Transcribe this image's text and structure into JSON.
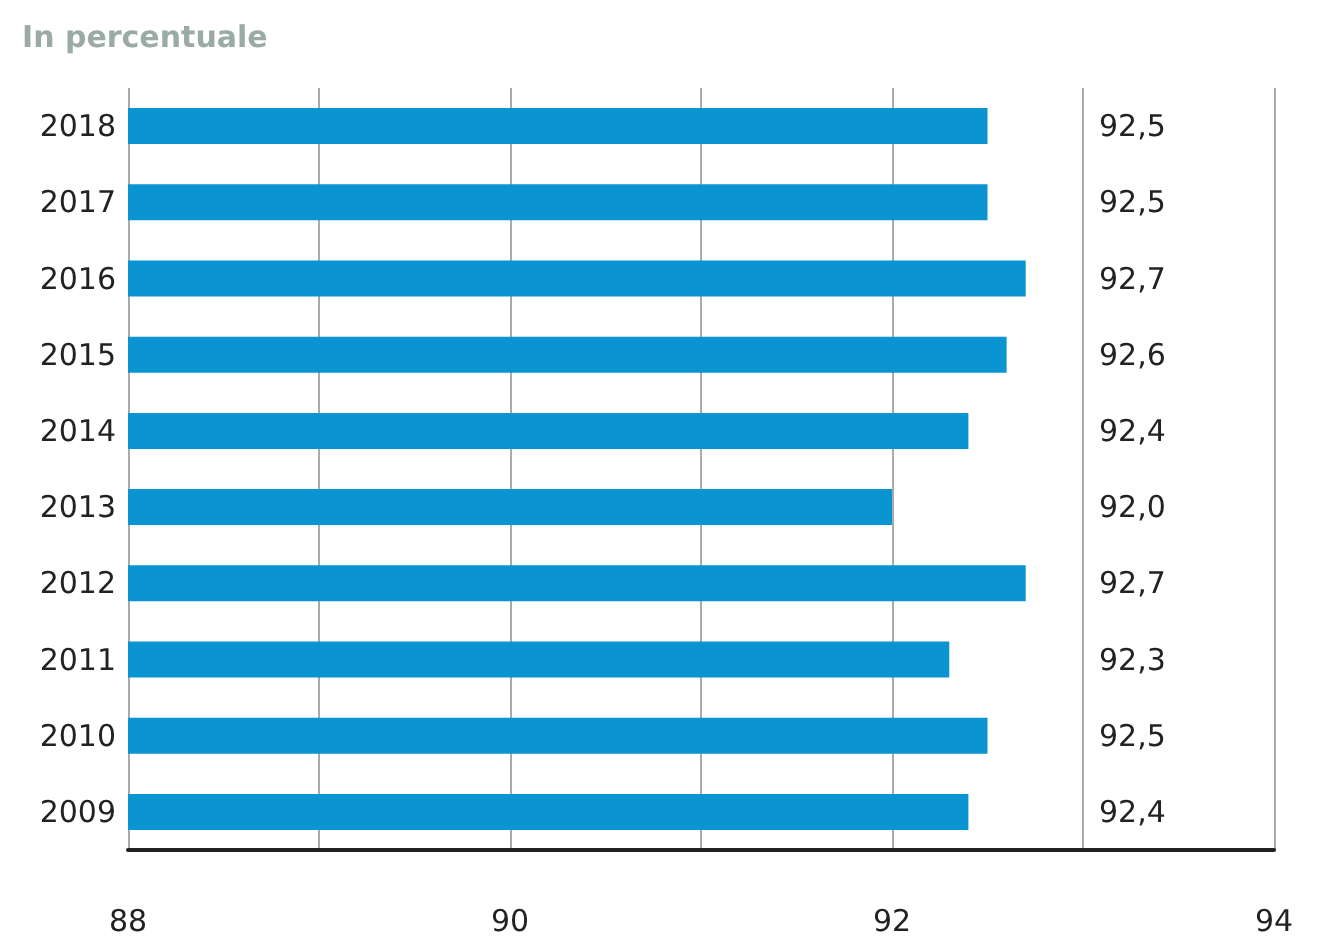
{
  "chart_data": {
    "type": "bar",
    "orientation": "horizontal",
    "title": "In percentuale",
    "categories": [
      "2018",
      "2017",
      "2016",
      "2015",
      "2014",
      "2013",
      "2012",
      "2011",
      "2010",
      "2009"
    ],
    "values": [
      92.5,
      92.5,
      92.7,
      92.6,
      92.4,
      92.0,
      92.7,
      92.3,
      92.5,
      92.4
    ],
    "value_labels": [
      "92,5",
      "92,5",
      "92,7",
      "92,6",
      "92,4",
      "92,0",
      "92,7",
      "92,3",
      "92,5",
      "92,4"
    ],
    "color": "#0a94d1",
    "xlim": [
      88,
      94
    ],
    "xticks": [
      88,
      {
        "value": 89,
        "label": null
      },
      90,
      {
        "value": 91,
        "label": null
      },
      92,
      {
        "value": 93,
        "label": null
      },
      94
    ],
    "grid": "x"
  }
}
